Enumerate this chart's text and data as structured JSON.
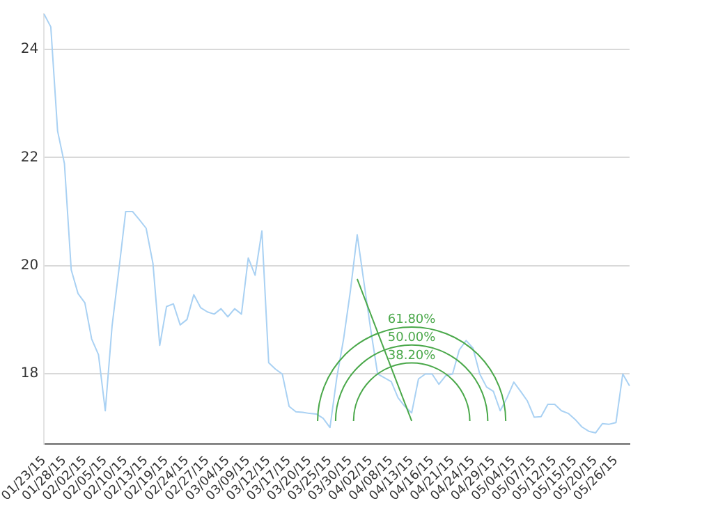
{
  "chart_data": {
    "type": "line",
    "categories": [
      "01/23/15",
      null,
      null,
      "01/28/15",
      null,
      null,
      "02/02/15",
      null,
      null,
      "02/05/15",
      null,
      null,
      "02/10/15",
      null,
      null,
      "02/13/15",
      null,
      null,
      "02/19/15",
      null,
      null,
      "02/24/15",
      null,
      null,
      "02/27/15",
      null,
      null,
      "03/04/15",
      null,
      null,
      "03/09/15",
      null,
      null,
      "03/12/15",
      null,
      null,
      "03/17/15",
      null,
      null,
      "03/20/15",
      null,
      null,
      "03/25/15",
      null,
      null,
      "03/30/15",
      null,
      null,
      "04/02/15",
      null,
      null,
      "04/08/15",
      null,
      null,
      "04/13/15",
      null,
      null,
      "04/16/15",
      null,
      null,
      "04/21/15",
      null,
      null,
      "04/24/15",
      null,
      null,
      "04/29/15",
      null,
      null,
      "05/04/15",
      null,
      null,
      "05/07/15",
      null,
      null,
      "05/12/15",
      null,
      null,
      "05/15/15",
      null,
      null,
      "05/20/15",
      null,
      null,
      "05/26/15",
      null,
      null
    ],
    "series": [
      {
        "color": "#a9d1f3",
        "values": [
          24.66,
          24.42,
          22.49,
          21.89,
          19.92,
          19.48,
          19.31,
          18.64,
          18.35,
          17.31,
          18.88,
          19.92,
          21.0,
          21.0,
          20.85,
          20.69,
          20.04,
          18.52,
          19.24,
          19.29,
          18.9,
          19.0,
          19.46,
          19.22,
          19.14,
          19.1,
          19.2,
          19.05,
          19.2,
          19.1,
          20.14,
          19.82,
          20.64,
          18.2,
          18.08,
          17.99,
          17.39,
          17.29,
          17.28,
          17.26,
          17.25,
          17.17,
          17.0,
          17.92,
          18.64,
          19.53,
          20.57,
          19.68,
          18.8,
          17.99,
          17.92,
          17.85,
          17.55,
          17.39,
          17.27,
          17.9,
          17.99,
          17.99,
          17.8,
          17.96,
          17.99,
          18.44,
          18.61,
          18.47,
          17.99,
          17.75,
          17.67,
          17.31,
          17.55,
          17.84,
          17.67,
          17.49,
          17.19,
          17.2,
          17.43,
          17.43,
          17.31,
          17.26,
          17.15,
          17.01,
          16.93,
          16.9,
          17.07,
          17.06,
          17.09,
          17.99,
          17.77
        ]
      },
      {
        "type": "line",
        "color": "#4aa84a",
        "values": [
          null,
          null,
          null,
          null,
          null,
          null,
          null,
          null,
          null,
          null,
          null,
          null,
          null,
          null,
          null,
          null,
          null,
          null,
          null,
          null,
          null,
          null,
          null,
          null,
          null,
          null,
          null,
          null,
          null,
          null,
          null,
          null,
          null,
          null,
          null,
          null,
          null,
          null,
          null,
          null,
          null,
          null,
          null,
          null,
          null,
          null,
          19.75,
          null,
          null,
          null,
          null,
          null,
          null,
          null,
          17.12,
          null,
          null,
          null,
          null,
          null,
          null,
          null,
          null,
          null,
          null,
          null,
          null,
          null,
          null,
          null,
          null,
          null,
          null,
          null,
          null,
          null,
          null,
          null,
          null,
          null,
          null,
          null,
          null,
          null,
          null,
          null,
          null
        ]
      }
    ],
    "annotations": [
      "61.80%",
      "50.00%",
      "38.20%"
    ],
    "ylim": [
      16.7,
      24.66
    ],
    "yticks": [
      18,
      20,
      22,
      24
    ],
    "grid": "y",
    "legend": false
  }
}
